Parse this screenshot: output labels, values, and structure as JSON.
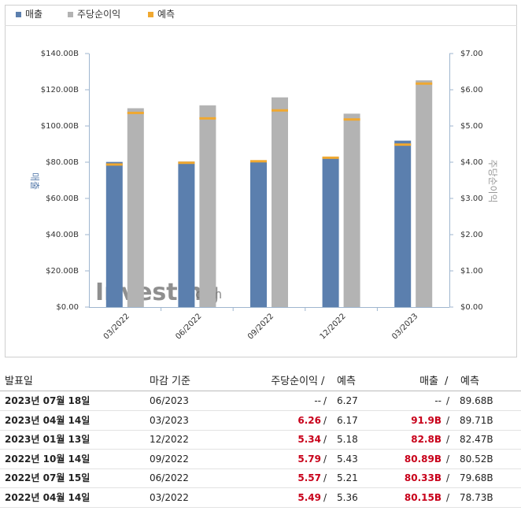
{
  "chart_data": {
    "type": "bar",
    "legend": [
      "매출",
      "주당순이익",
      "예측"
    ],
    "y_axis_label": "매출",
    "y2_axis_label": "주당순이익",
    "watermark": "Investing",
    "watermark_suffix": ".com",
    "categories": [
      "03/2022",
      "06/2022",
      "09/2022",
      "12/2022",
      "03/2023"
    ],
    "series": [
      {
        "name": "매출",
        "color": "#5b7fae",
        "values": [
          80.15,
          80.33,
          80.89,
          82.8,
          91.9
        ],
        "axis": "y"
      },
      {
        "name": "주당순이익",
        "color": "#b3b3b3",
        "values": [
          5.49,
          5.57,
          5.79,
          5.34,
          6.26
        ],
        "axis": "y2"
      }
    ],
    "forecast": {
      "name": "예측",
      "color": "#f0a830",
      "values": [
        78.73,
        79.68,
        80.52,
        82.47,
        89.71
      ],
      "values_y2": [
        5.36,
        5.21,
        5.43,
        5.18,
        6.17
      ]
    },
    "ylim": [
      0,
      140
    ],
    "yticks": [
      {
        "value": 0,
        "label": "$0.00"
      },
      {
        "value": 20,
        "label": "$20.00B"
      },
      {
        "value": 40,
        "label": "$40.00B"
      },
      {
        "value": 60,
        "label": "$60.00B"
      },
      {
        "value": 80,
        "label": "$80.00B"
      },
      {
        "value": 100,
        "label": "$100.00B"
      },
      {
        "value": 120,
        "label": "$120.00B"
      },
      {
        "value": 140,
        "label": "$140.00B"
      }
    ],
    "y2lim": [
      0,
      7
    ],
    "y2ticks": [
      {
        "value": 0,
        "label": "$0.00"
      },
      {
        "value": 1,
        "label": "$1.00"
      },
      {
        "value": 2,
        "label": "$2.00"
      },
      {
        "value": 3,
        "label": "$3.00"
      },
      {
        "value": 4,
        "label": "$4.00"
      },
      {
        "value": 5,
        "label": "$5.00"
      },
      {
        "value": 6,
        "label": "$6.00"
      },
      {
        "value": 7,
        "label": "$7.00"
      }
    ]
  },
  "table": {
    "header": {
      "date": "발표일",
      "period": "마감 기준",
      "eps": "주당순이익",
      "separator": "/",
      "forecast": "예측",
      "revenue": "매출"
    },
    "rows": [
      [
        "2023년 07월 18일",
        "06/2023",
        "--",
        "6.27",
        "--",
        "89.68B"
      ],
      [
        "2023년 04월 14일",
        "03/2023",
        "6.26",
        "6.17",
        "91.9B",
        "89.71B"
      ],
      [
        "2023년 01월 13일",
        "12/2022",
        "5.34",
        "5.18",
        "82.8B",
        "82.47B"
      ],
      [
        "2022년 10월 14일",
        "09/2022",
        "5.79",
        "5.43",
        "80.89B",
        "80.52B"
      ],
      [
        "2022년 07월 15일",
        "06/2022",
        "5.57",
        "5.21",
        "80.33B",
        "79.68B"
      ],
      [
        "2022년 04월 14일",
        "03/2022",
        "5.49",
        "5.36",
        "80.15B",
        "78.73B"
      ]
    ]
  }
}
